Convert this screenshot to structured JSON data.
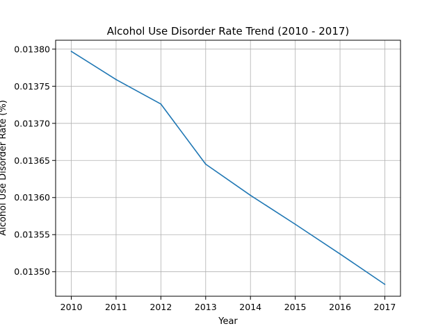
{
  "chart_data": {
    "type": "line",
    "title": "Alcohol Use Disorder Rate Trend (2010 - 2017)",
    "xlabel": "Year",
    "ylabel": "Alcohol Use Disorder Rate (%)",
    "x": [
      2010,
      2011,
      2012,
      2013,
      2014,
      2015,
      2016,
      2017
    ],
    "series": [
      {
        "values": [
          0.013797,
          0.013759,
          0.013726,
          0.013645,
          0.013603,
          0.013564,
          0.013524,
          0.013483
        ]
      }
    ],
    "xlim": [
      2009.65,
      2017.35
    ],
    "ylim": [
      0.013467,
      0.013812
    ],
    "xticks": [
      "2010",
      "2011",
      "2012",
      "2013",
      "2014",
      "2015",
      "2016",
      "2017"
    ],
    "yticks": [
      "0.01350",
      "0.01355",
      "0.01360",
      "0.01365",
      "0.01370",
      "0.01375",
      "0.01380"
    ],
    "grid": true,
    "line_color": "#1f77b4"
  }
}
